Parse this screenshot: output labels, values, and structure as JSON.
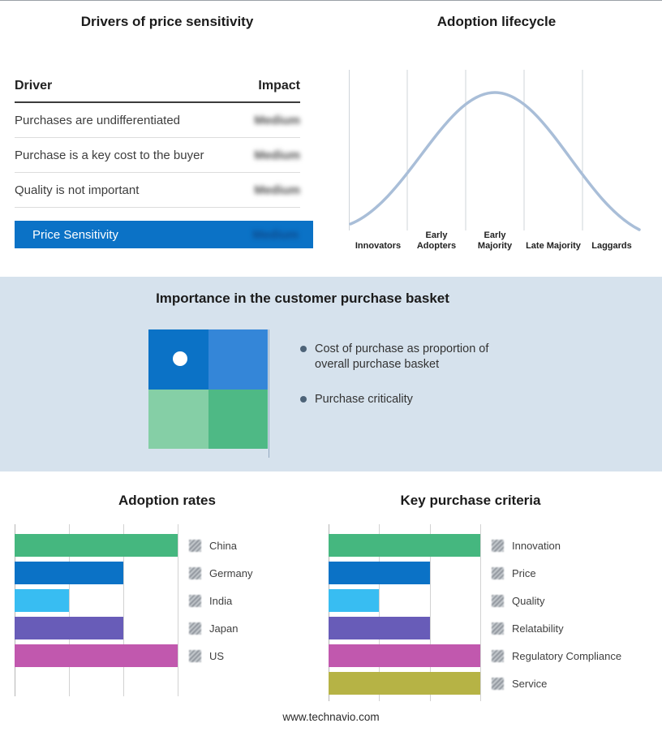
{
  "drivers": {
    "title": "Drivers of price sensitivity",
    "header": {
      "driver": "Driver",
      "impact": "Impact"
    },
    "rows": [
      {
        "driver": "Purchases are undifferentiated",
        "impact": "Medium"
      },
      {
        "driver": "Purchase is a key cost to the buyer",
        "impact": "Medium"
      },
      {
        "driver": "Quality is not important",
        "impact": "Medium"
      }
    ],
    "summary": {
      "label": "Price Sensitivity",
      "impact": "Medium"
    },
    "accent_color": "#0b72c6",
    "impact_values_blurred": true
  },
  "lifecycle": {
    "title": "Adoption lifecycle",
    "curve_color": "#a9bed8"
  },
  "basket": {
    "title": "Importance in the customer purchase basket",
    "bullets": [
      "Cost of purchase as proportion of overall purchase basket",
      "Purchase criticality"
    ],
    "quadrant_colors": [
      "#0b72c6",
      "#3486d8",
      "#85cfa6",
      "#4eb985"
    ],
    "band_bg": "#d6e2ed"
  },
  "chart_data": [
    {
      "id": "lifecycle-curve",
      "type": "line",
      "title": "Adoption lifecycle",
      "categories": [
        "Innovators",
        "Early Adopters",
        "Early Majority",
        "Late Majority",
        "Laggards"
      ],
      "values": [
        0.08,
        0.55,
        1.0,
        0.55,
        0.08
      ],
      "ylim": [
        0,
        1
      ],
      "grid": true,
      "note": "conceptual bell curve; no numeric axis shown"
    },
    {
      "id": "adoption-rates",
      "type": "bar",
      "orientation": "horizontal",
      "title": "Adoption rates",
      "categories": [
        "China",
        "Germany",
        "India",
        "Japan",
        "US"
      ],
      "values": [
        3,
        2,
        1,
        2,
        3
      ],
      "xlim": [
        0,
        3
      ],
      "colors": [
        "#45b77f",
        "#0b72c6",
        "#38bdf2",
        "#685cb8",
        "#c158ae"
      ],
      "grid": true,
      "legend_position": "right",
      "note": "relative lengths read from unlabeled gridlines"
    },
    {
      "id": "key-purchase-criteria",
      "type": "bar",
      "orientation": "horizontal",
      "title": "Key purchase criteria",
      "categories": [
        "Innovation",
        "Price",
        "Quality",
        "Relatability",
        "Regulatory Compliance",
        "Service"
      ],
      "values": [
        3,
        2,
        1,
        2,
        3,
        3
      ],
      "xlim": [
        0,
        3
      ],
      "colors": [
        "#45b77f",
        "#0b72c6",
        "#38bdf2",
        "#685cb8",
        "#c158ae",
        "#b6b345"
      ],
      "grid": true,
      "legend_position": "right",
      "note": "relative lengths read from unlabeled gridlines"
    }
  ],
  "footer": {
    "text": "www.technavio.com"
  }
}
